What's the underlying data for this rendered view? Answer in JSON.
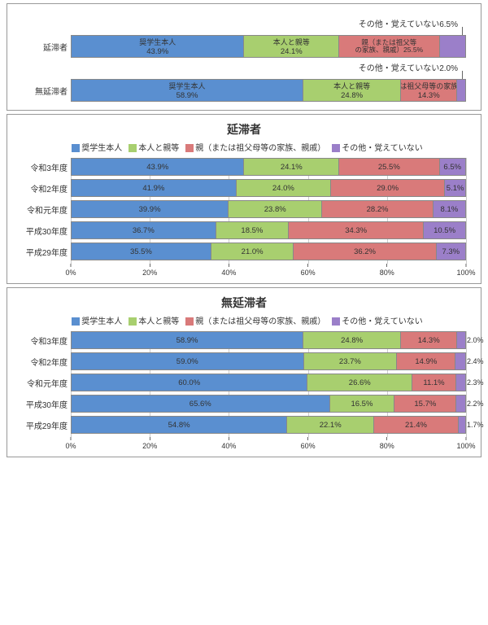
{
  "colors": {
    "c1": "#5a8fd0",
    "c2": "#a8cf6f",
    "c3": "#d97a7a",
    "c4": "#9b7fc9",
    "grid": "#cccccc",
    "bg": "#ffffff"
  },
  "series_labels": [
    "奨学生本人",
    "本人と親等",
    "親（または祖父母等の家族、親戚）",
    "その他・覚えていない"
  ],
  "top": {
    "rows": [
      {
        "label": "延滞者",
        "vals": [
          43.9,
          24.1,
          25.5,
          6.5
        ],
        "callout": "その他・覚えていない6.5%",
        "seg3_two_line": "親（または祖父等\nの家族、親戚）25.5%",
        "show_series_text": true
      },
      {
        "label": "無延滞者",
        "vals": [
          58.9,
          24.8,
          14.3,
          2.0
        ],
        "callout": "その他・覚えていない2.0%",
        "show_series_text": true
      }
    ]
  },
  "mid": {
    "title": "延滞者",
    "rows": [
      {
        "label": "令和3年度",
        "vals": [
          43.9,
          24.1,
          25.5,
          6.5
        ]
      },
      {
        "label": "令和2年度",
        "vals": [
          41.9,
          24.0,
          29.0,
          5.1
        ]
      },
      {
        "label": "令和元年度",
        "vals": [
          39.9,
          23.8,
          28.2,
          8.1
        ]
      },
      {
        "label": "平成30年度",
        "vals": [
          36.7,
          18.5,
          34.3,
          10.5
        ]
      },
      {
        "label": "平成29年度",
        "vals": [
          35.5,
          21.0,
          36.2,
          7.3
        ]
      }
    ],
    "ticks": [
      0,
      20,
      40,
      60,
      80,
      100
    ]
  },
  "bot": {
    "title": "無延滞者",
    "rows": [
      {
        "label": "令和3年度",
        "vals": [
          58.9,
          24.8,
          14.3,
          2.0
        ]
      },
      {
        "label": "令和2年度",
        "vals": [
          59.0,
          23.7,
          14.9,
          2.4
        ]
      },
      {
        "label": "令和元年度",
        "vals": [
          60.0,
          26.6,
          11.1,
          2.3
        ]
      },
      {
        "label": "平成30年度",
        "vals": [
          65.6,
          16.5,
          15.7,
          2.2
        ]
      },
      {
        "label": "平成29年度",
        "vals": [
          54.8,
          22.1,
          21.4,
          1.7
        ]
      }
    ],
    "ticks": [
      0,
      20,
      40,
      60,
      80,
      100
    ]
  }
}
